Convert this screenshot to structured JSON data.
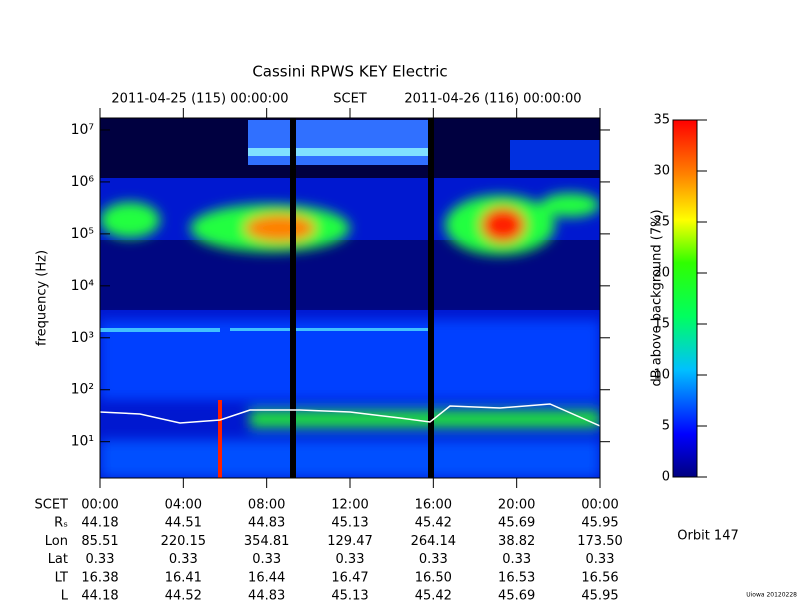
{
  "chart_data": {
    "type": "spectrogram",
    "title": "Cassini RPWS KEY Electric",
    "time_labels": [
      "2011-04-25 (115) 00:00:00",
      "SCET",
      "2011-04-26 (116) 00:00:00"
    ],
    "ylabel": "frequency (Hz)",
    "log_y": true,
    "ylim": [
      2,
      17000000
    ],
    "yticks": [
      {
        "value": 10,
        "label": "10¹"
      },
      {
        "value": 100,
        "label": "10²"
      },
      {
        "value": 1000,
        "label": "10³"
      },
      {
        "value": 10000,
        "label": "10⁴"
      },
      {
        "value": 100000,
        "label": "10⁵"
      },
      {
        "value": 1000000,
        "label": "10⁶"
      },
      {
        "value": 10000000,
        "label": "10⁷"
      }
    ],
    "xlim": [
      0,
      24
    ],
    "xticks": [
      {
        "value": 0,
        "label": "00:00"
      },
      {
        "value": 4,
        "label": "04:00"
      },
      {
        "value": 8,
        "label": "08:00"
      },
      {
        "value": 12,
        "label": "12:00"
      },
      {
        "value": 16,
        "label": "16:00"
      },
      {
        "value": 20,
        "label": "20:00"
      },
      {
        "value": 24,
        "label": "00:00"
      }
    ],
    "zlabel": "dB above background (7%)",
    "zlim": [
      0,
      35
    ],
    "zticks": [
      0,
      5,
      10,
      15,
      20,
      25,
      30,
      35
    ],
    "ephemeris": {
      "first_label": "SCET",
      "rows": [
        {
          "label": "Rₛ",
          "values": [
            "44.18",
            "44.51",
            "44.83",
            "45.13",
            "45.42",
            "45.69",
            "45.95"
          ]
        },
        {
          "label": "Lon",
          "values": [
            "85.51",
            "220.15",
            "354.81",
            "129.47",
            "264.14",
            "38.82",
            "173.50"
          ]
        },
        {
          "label": "Lat",
          "values": [
            "0.33",
            "0.33",
            "0.33",
            "0.33",
            "0.33",
            "0.33",
            "0.33"
          ]
        },
        {
          "label": "LT",
          "values": [
            "16.38",
            "16.41",
            "16.44",
            "16.47",
            "16.50",
            "16.53",
            "16.56"
          ]
        },
        {
          "label": "L",
          "values": [
            "44.18",
            "44.52",
            "44.83",
            "45.13",
            "45.42",
            "45.69",
            "45.95"
          ]
        }
      ]
    },
    "orbit": "Orbit 147",
    "credit": "Uiowa 20120228"
  }
}
